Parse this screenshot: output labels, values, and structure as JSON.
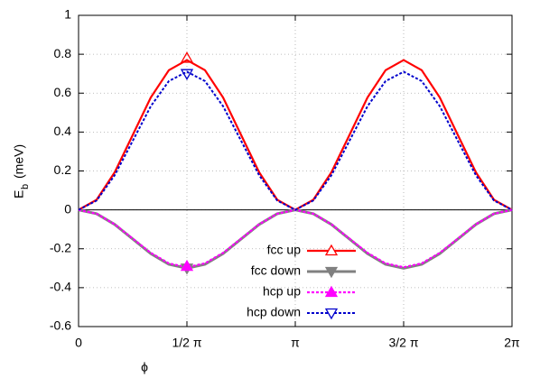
{
  "chart_data": {
    "type": "line",
    "x_label": "ϕ",
    "y_label": "E",
    "y_label_sub": "b",
    "y_label_unit": "(meV)",
    "x": [
      0,
      0.2618,
      0.5236,
      0.7854,
      1.0472,
      1.309,
      1.5708,
      1.8326,
      2.0944,
      2.3562,
      2.618,
      2.8798,
      3.1416,
      3.4034,
      3.6652,
      3.927,
      4.1888,
      4.4506,
      4.7124,
      4.9742,
      5.236,
      5.4978,
      5.7596,
      6.0214,
      6.2832
    ],
    "series": [
      {
        "name": "fcc up",
        "color": "#ff0000",
        "dash": "none",
        "width": 2.2,
        "marker": "triangle-up",
        "marker_filled": false,
        "marker_point": [
          1.5708,
          0.78
        ],
        "values": [
          0,
          0.052,
          0.193,
          0.385,
          0.578,
          0.718,
          0.77,
          0.718,
          0.578,
          0.385,
          0.193,
          0.052,
          0,
          0.052,
          0.193,
          0.385,
          0.578,
          0.718,
          0.77,
          0.718,
          0.578,
          0.385,
          0.193,
          0.052,
          0
        ]
      },
      {
        "name": "fcc down",
        "color": "#808080",
        "dash": "none",
        "width": 3,
        "marker": "triangle-down",
        "marker_filled": true,
        "marker_point": [
          1.5708,
          -0.3
        ],
        "values": [
          0,
          -0.02,
          -0.075,
          -0.15,
          -0.225,
          -0.28,
          -0.3,
          -0.28,
          -0.225,
          -0.15,
          -0.075,
          -0.02,
          0,
          -0.02,
          -0.075,
          -0.15,
          -0.225,
          -0.28,
          -0.3,
          -0.28,
          -0.225,
          -0.15,
          -0.075,
          -0.02,
          0
        ]
      },
      {
        "name": "hcp up",
        "color": "#ff00ff",
        "dash": "3 2",
        "width": 2.2,
        "marker": "triangle-up",
        "marker_filled": true,
        "marker_point": [
          1.5708,
          -0.29
        ],
        "values": [
          0,
          -0.02,
          -0.074,
          -0.148,
          -0.221,
          -0.275,
          -0.295,
          -0.275,
          -0.221,
          -0.148,
          -0.074,
          -0.02,
          0,
          -0.02,
          -0.074,
          -0.148,
          -0.221,
          -0.275,
          -0.295,
          -0.275,
          -0.221,
          -0.148,
          -0.074,
          -0.02,
          0
        ]
      },
      {
        "name": "hcp down",
        "color": "#0000cc",
        "dash": "3 2",
        "width": 2,
        "marker": "triangle-down",
        "marker_filled": false,
        "marker_point": [
          1.5708,
          0.7
        ],
        "values": [
          0,
          0.048,
          0.178,
          0.355,
          0.533,
          0.662,
          0.71,
          0.662,
          0.533,
          0.355,
          0.178,
          0.048,
          0,
          0.048,
          0.178,
          0.355,
          0.533,
          0.662,
          0.71,
          0.662,
          0.533,
          0.355,
          0.178,
          0.048,
          0
        ]
      }
    ],
    "xlim": [
      0,
      6.2832
    ],
    "xticks": [
      0,
      {
        "value": 1.5708,
        "label": "1/2 π"
      },
      {
        "value": 3.1416,
        "label": "π"
      },
      {
        "value": 4.7124,
        "label": "3/2 π"
      },
      {
        "value": 6.2832,
        "label": "2π"
      }
    ],
    "ylim": [
      -0.6,
      1
    ],
    "yticks": [
      -0.6,
      -0.4,
      -0.2,
      0,
      0.2,
      0.4,
      0.6,
      0.8,
      1
    ],
    "grid": true,
    "zero_line": true,
    "legend": "lower-right"
  }
}
